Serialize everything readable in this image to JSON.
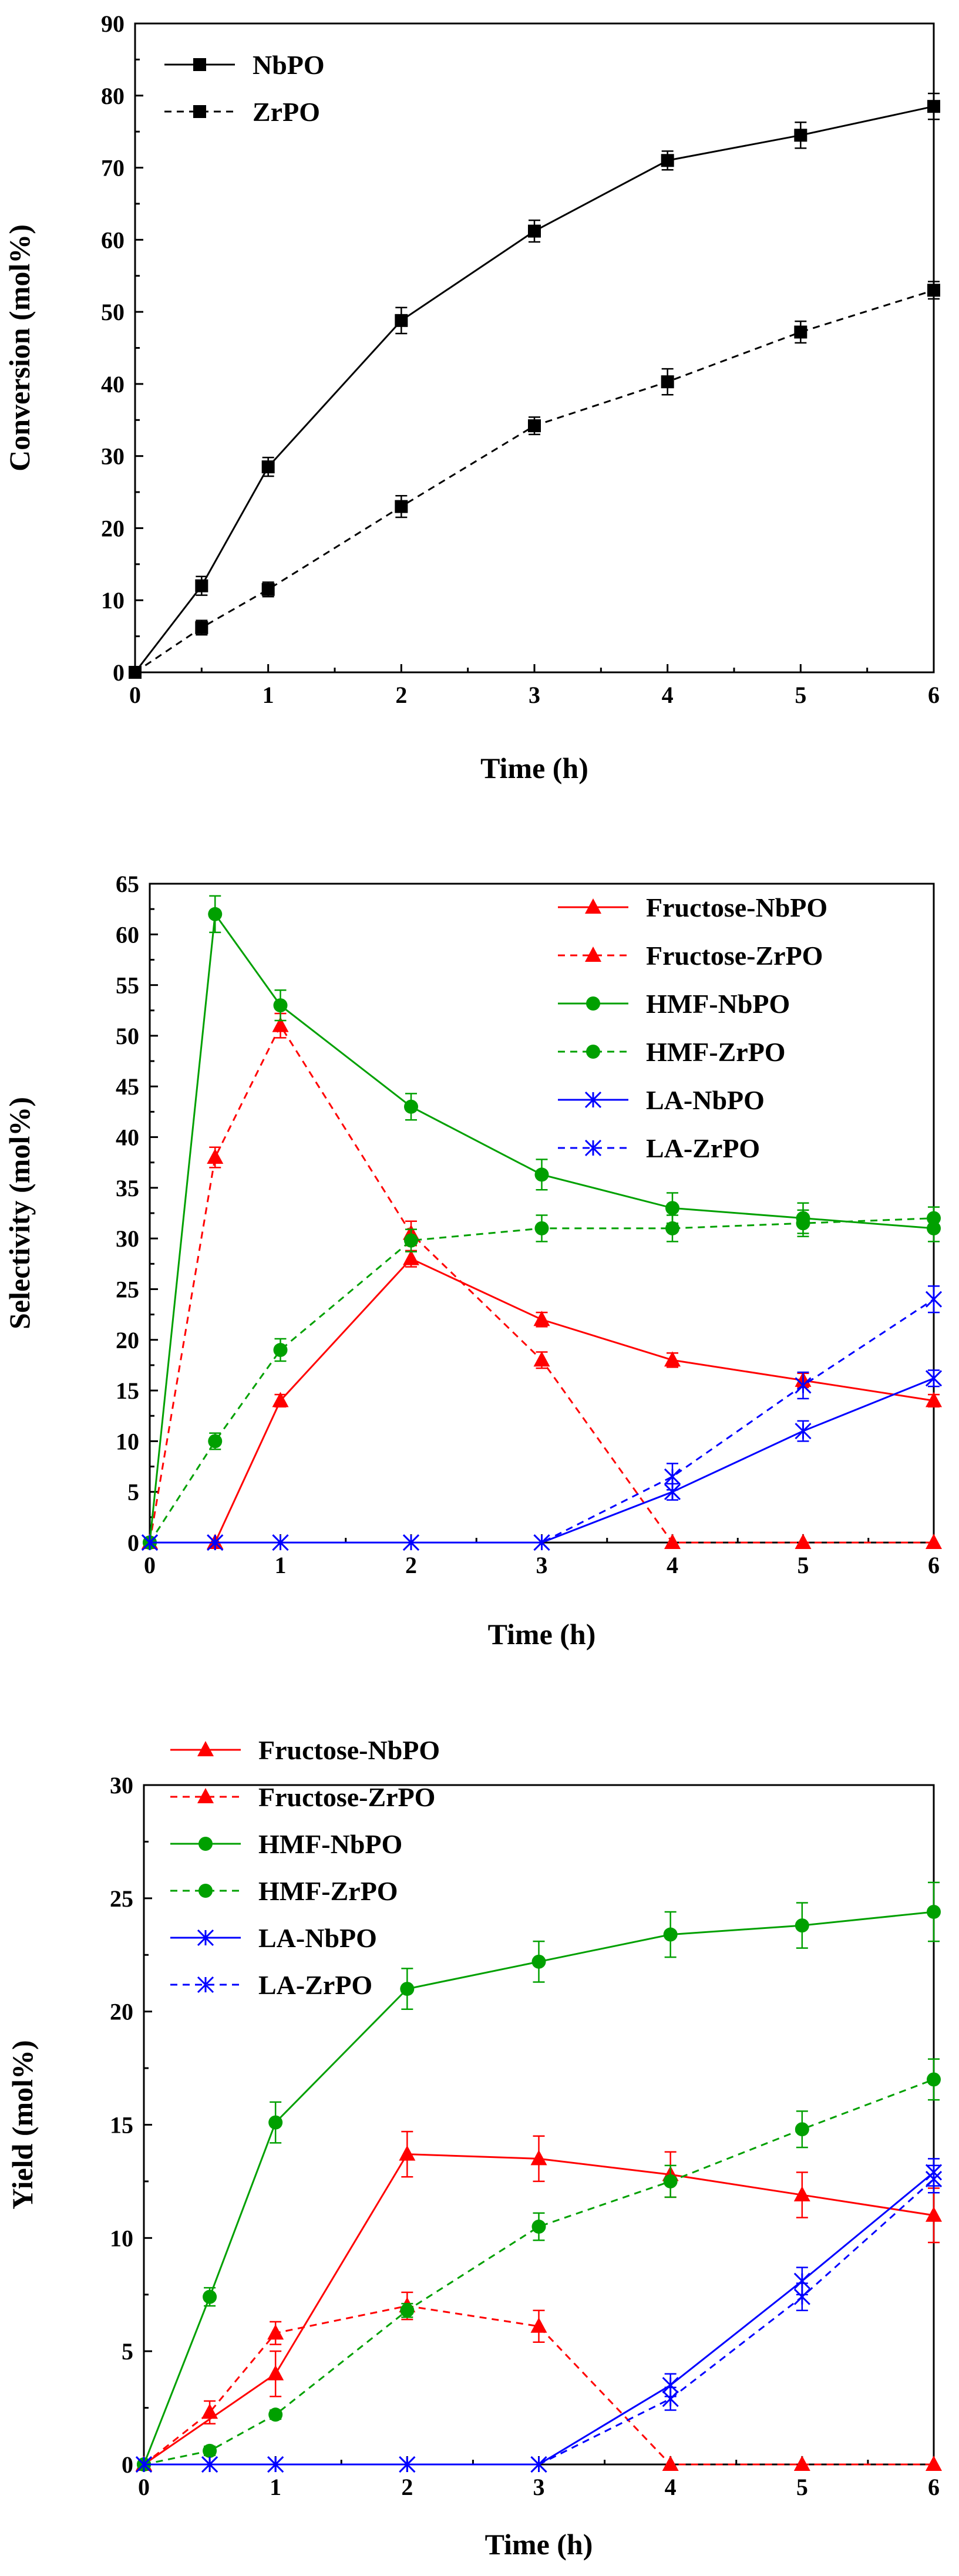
{
  "chart_data": [
    {
      "type": "line",
      "xlabel": "Time (h)",
      "ylabel": "Conversion (mol%)",
      "xlim": [
        0,
        6
      ],
      "ylim": [
        0,
        90
      ],
      "xticks": [
        "0",
        "1",
        "2",
        "3",
        "4",
        "5",
        "6"
      ],
      "yticks": [
        "0",
        "10",
        "20",
        "30",
        "40",
        "50",
        "60",
        "70",
        "80",
        "90"
      ],
      "legend_position": "top-left",
      "series": [
        {
          "name": "NbPO",
          "color": "#000000",
          "dash": "solid",
          "marker": "square",
          "x": [
            0,
            0.5,
            1,
            2,
            3,
            4,
            5,
            6
          ],
          "y": [
            0,
            12,
            28.5,
            48.8,
            61.2,
            71,
            74.5,
            78.5
          ],
          "err": [
            0,
            1.3,
            1.3,
            1.8,
            1.5,
            1.3,
            1.8,
            1.8
          ]
        },
        {
          "name": "ZrPO",
          "color": "#000000",
          "dash": "dashed",
          "marker": "square",
          "x": [
            0,
            0.5,
            1,
            2,
            3,
            4,
            5,
            6
          ],
          "y": [
            0,
            6.2,
            11.5,
            23,
            34.2,
            40.3,
            47.2,
            53
          ],
          "err": [
            0,
            1,
            1,
            1.5,
            1.2,
            1.8,
            1.5,
            1.2
          ]
        }
      ]
    },
    {
      "type": "line",
      "xlabel": "Time (h)",
      "ylabel": "Selectivity (mol%)",
      "xlim": [
        0,
        6
      ],
      "ylim": [
        0,
        65
      ],
      "xticks": [
        "0",
        "1",
        "2",
        "3",
        "4",
        "5",
        "6"
      ],
      "yticks": [
        "0",
        "5",
        "10",
        "15",
        "20",
        "25",
        "30",
        "35",
        "40",
        "45",
        "50",
        "55",
        "60",
        "65"
      ],
      "legend_position": "top-right",
      "series": [
        {
          "name": "Fructose-NbPO",
          "color": "#ff0000",
          "dash": "solid",
          "marker": "triangle",
          "x": [
            0.5,
            1,
            2,
            3,
            4,
            5,
            6
          ],
          "y": [
            0,
            14,
            28,
            22,
            18,
            16,
            14
          ],
          "err": [
            0,
            0.6,
            0.8,
            0.7,
            0.7,
            0.7,
            0.6
          ]
        },
        {
          "name": "Fructose-ZrPO",
          "color": "#ff0000",
          "dash": "dashed",
          "marker": "triangle",
          "x": [
            0,
            0.5,
            1,
            2,
            3,
            4,
            5,
            6
          ],
          "y": [
            0,
            38,
            51,
            30.5,
            18,
            0,
            0,
            0
          ],
          "err": [
            0,
            1,
            1.2,
            1.2,
            0.8,
            0,
            0,
            0
          ]
        },
        {
          "name": "HMF-NbPO",
          "color": "#00a000",
          "dash": "solid",
          "marker": "circle",
          "x": [
            0,
            0.5,
            1,
            2,
            3,
            4,
            5,
            6
          ],
          "y": [
            0,
            62,
            53,
            43,
            36.3,
            33,
            32,
            31
          ],
          "err": [
            0,
            1.8,
            1.5,
            1.3,
            1.5,
            1.5,
            1.5,
            1.3
          ]
        },
        {
          "name": "HMF-ZrPO",
          "color": "#00a000",
          "dash": "dashed",
          "marker": "circle",
          "x": [
            0,
            0.5,
            1,
            2,
            3,
            4,
            5,
            6
          ],
          "y": [
            0,
            10,
            19,
            29.8,
            31,
            31,
            31.5,
            32
          ],
          "err": [
            0,
            0.8,
            1.1,
            1.1,
            1.3,
            1.3,
            1.3,
            1.1
          ]
        },
        {
          "name": "LA-NbPO",
          "color": "#0000ff",
          "dash": "solid",
          "marker": "asterisk",
          "x": [
            0,
            0.5,
            1,
            2,
            3,
            4,
            5,
            6
          ],
          "y": [
            0,
            0,
            0,
            0,
            0,
            5,
            11,
            16.2
          ],
          "err": [
            0,
            0,
            0,
            0,
            0,
            0.8,
            1,
            0.8
          ]
        },
        {
          "name": "LA-ZrPO",
          "color": "#0000ff",
          "dash": "dashed",
          "marker": "asterisk",
          "x": [
            0,
            0.5,
            1,
            2,
            3,
            4,
            5,
            6
          ],
          "y": [
            0,
            0,
            0,
            0,
            0,
            6.5,
            15.5,
            24
          ],
          "err": [
            0,
            0,
            0,
            0,
            0,
            1.3,
            1.3,
            1.3
          ]
        }
      ]
    },
    {
      "type": "line",
      "xlabel": "Time (h)",
      "ylabel": "Yield (mol%)",
      "xlim": [
        0,
        6
      ],
      "ylim": [
        0,
        30
      ],
      "xticks": [
        "0",
        "1",
        "2",
        "3",
        "4",
        "5",
        "6"
      ],
      "yticks": [
        "0",
        "5",
        "10",
        "15",
        "20",
        "25",
        "30"
      ],
      "legend_position": "top-left",
      "series": [
        {
          "name": "Fructose-NbPO",
          "color": "#ff0000",
          "dash": "solid",
          "marker": "triangle",
          "x": [
            0,
            1,
            2,
            3,
            4,
            5,
            6
          ],
          "y": [
            0,
            4,
            13.7,
            13.5,
            12.8,
            11.9,
            11
          ],
          "err": [
            0,
            1,
            1,
            1,
            1,
            1,
            1.2
          ]
        },
        {
          "name": "Fructose-ZrPO",
          "color": "#ff0000",
          "dash": "dashed",
          "marker": "triangle",
          "x": [
            0,
            0.5,
            1,
            2,
            3,
            4,
            5,
            6
          ],
          "y": [
            0,
            2.3,
            5.8,
            7,
            6.1,
            0,
            0,
            0
          ],
          "err": [
            0,
            0.5,
            0.5,
            0.6,
            0.7,
            0,
            0,
            0
          ]
        },
        {
          "name": "HMF-NbPO",
          "color": "#00a000",
          "dash": "solid",
          "marker": "circle",
          "x": [
            0,
            0.5,
            1,
            2,
            3,
            4,
            5,
            6
          ],
          "y": [
            0,
            7.4,
            15.1,
            21,
            22.2,
            23.4,
            23.8,
            24.4
          ],
          "err": [
            0,
            0.4,
            0.9,
            0.9,
            0.9,
            1,
            1,
            1.3
          ]
        },
        {
          "name": "HMF-ZrPO",
          "color": "#00a000",
          "dash": "dashed",
          "marker": "circle",
          "x": [
            0,
            0.5,
            1,
            2,
            3,
            4,
            5,
            6
          ],
          "y": [
            0,
            0.6,
            2.2,
            6.8,
            10.5,
            12.5,
            14.8,
            17
          ],
          "err": [
            0,
            0.2,
            0.2,
            0.3,
            0.6,
            0.7,
            0.8,
            0.9
          ]
        },
        {
          "name": "LA-NbPO",
          "color": "#0000ff",
          "dash": "solid",
          "marker": "asterisk",
          "x": [
            0,
            0.5,
            1,
            2,
            3,
            4,
            5,
            6
          ],
          "y": [
            0,
            0,
            0,
            0,
            0,
            3.5,
            8.1,
            12.9
          ],
          "err": [
            0,
            0,
            0,
            0,
            0,
            0.5,
            0.6,
            0.6
          ]
        },
        {
          "name": "LA-ZrPO",
          "color": "#0000ff",
          "dash": "dashed",
          "marker": "asterisk",
          "x": [
            0,
            0.5,
            1,
            2,
            3,
            4,
            5,
            6
          ],
          "y": [
            0,
            0,
            0,
            0,
            0,
            2.9,
            7.4,
            12.6
          ],
          "err": [
            0,
            0,
            0,
            0,
            0,
            0.5,
            0.6,
            0.6
          ]
        }
      ]
    }
  ]
}
